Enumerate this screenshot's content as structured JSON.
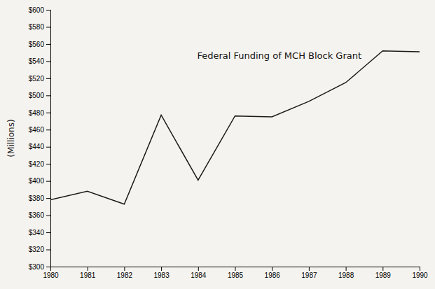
{
  "chart_data": {
    "type": "line",
    "title": "Federal Funding of MCH Block Grant",
    "ylabel": "(Millions)",
    "x": [
      1980,
      1981,
      1982,
      1983,
      1984,
      1985,
      1986,
      1987,
      1988,
      1989,
      1990
    ],
    "values": [
      378,
      388,
      373,
      477,
      401,
      476,
      475,
      493,
      515,
      552,
      551
    ],
    "color": "#1a1a1a",
    "xlim": [
      1980,
      1990
    ],
    "xticks": [
      1980,
      1981,
      1982,
      1983,
      1984,
      1985,
      1986,
      1987,
      1988,
      1989,
      1990
    ],
    "ylim": [
      300,
      600
    ],
    "yticks": [
      {
        "value": 300,
        "label": "$300"
      },
      {
        "value": 320,
        "label": "$320"
      },
      {
        "value": 340,
        "label": "$340"
      },
      {
        "value": 360,
        "label": "$360"
      },
      {
        "value": 380,
        "label": "$380"
      },
      {
        "value": 400,
        "label": "$400"
      },
      {
        "value": 420,
        "label": "$420"
      },
      {
        "value": 440,
        "label": "$440"
      },
      {
        "value": 460,
        "label": "$460"
      },
      {
        "value": 480,
        "label": "$480"
      },
      {
        "value": 500,
        "label": "$500"
      },
      {
        "value": 520,
        "label": "$520"
      },
      {
        "value": 540,
        "label": "$540"
      },
      {
        "value": 560,
        "label": "$560"
      },
      {
        "value": 580,
        "label": "$580"
      },
      {
        "value": 600,
        "label": "$600"
      }
    ],
    "grid": false
  }
}
